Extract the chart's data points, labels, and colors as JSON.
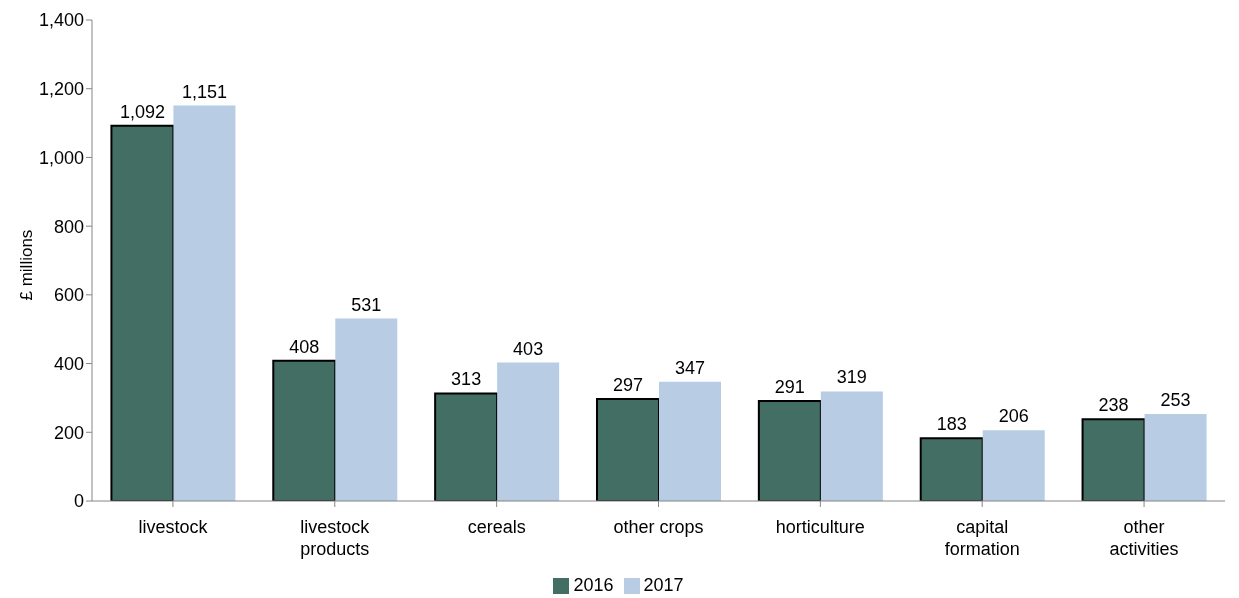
{
  "chart_data": {
    "type": "bar",
    "ylabel": "£ millions",
    "categories": [
      "livestock",
      "livestock products",
      "cereals",
      "other crops",
      "horticulture",
      "capital formation",
      "other activities"
    ],
    "series": [
      {
        "name": "2016",
        "color": "#436e64",
        "values": [
          1092,
          408,
          313,
          297,
          291,
          183,
          238
        ],
        "value_labels": [
          "1,092",
          "408",
          "313",
          "297",
          "291",
          "183",
          "238"
        ]
      },
      {
        "name": "2017",
        "color": "#b8cce4",
        "values": [
          1151,
          531,
          403,
          347,
          319,
          206,
          253
        ],
        "value_labels": [
          "1,151",
          "531",
          "403",
          "347",
          "319",
          "206",
          "253"
        ]
      }
    ],
    "ylim": [
      0,
      1400
    ],
    "yticks": [
      0,
      {
        "value": 200,
        "label": "200"
      },
      {
        "value": 400,
        "label": "400"
      },
      {
        "value": 600,
        "label": "600"
      },
      {
        "value": 800,
        "label": "800"
      },
      {
        "value": 1000,
        "label": "1,000"
      },
      {
        "value": 1200,
        "label": "1,200"
      },
      {
        "value": 1400,
        "label": "1,400"
      }
    ],
    "grid": false,
    "legend": "bottom"
  }
}
